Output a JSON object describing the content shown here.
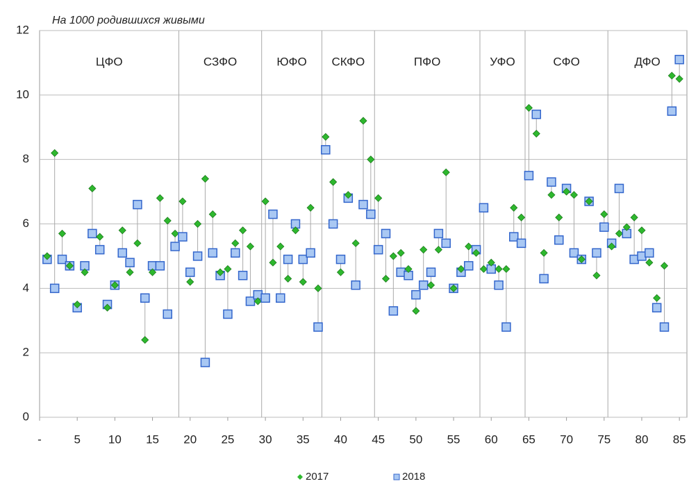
{
  "chart_data": {
    "type": "scatter",
    "subtitle": "На 1000 родившихся живыми",
    "x": [
      1,
      2,
      3,
      4,
      5,
      6,
      7,
      8,
      9,
      10,
      11,
      12,
      13,
      14,
      15,
      16,
      17,
      18,
      19,
      20,
      21,
      22,
      23,
      24,
      25,
      26,
      27,
      28,
      29,
      30,
      31,
      32,
      33,
      34,
      35,
      36,
      37,
      38,
      39,
      40,
      41,
      42,
      43,
      44,
      45,
      46,
      47,
      48,
      49,
      50,
      51,
      52,
      53,
      54,
      55,
      56,
      57,
      58,
      59,
      60,
      61,
      62,
      63,
      64,
      65,
      66,
      67,
      68,
      69,
      70,
      71,
      72,
      73,
      74,
      75,
      76,
      77,
      78,
      79,
      80,
      81,
      82,
      83,
      84,
      85
    ],
    "series": [
      {
        "name": "2017",
        "color": "#2eb82e",
        "values": [
          5.0,
          8.2,
          5.7,
          4.7,
          3.5,
          4.5,
          7.1,
          5.6,
          3.4,
          4.1,
          5.8,
          4.5,
          5.4,
          2.4,
          4.5,
          6.8,
          6.1,
          5.7,
          6.7,
          4.2,
          6.0,
          7.4,
          6.3,
          4.5,
          4.6,
          5.4,
          5.8,
          5.3,
          3.6,
          6.7,
          4.8,
          5.3,
          4.3,
          5.8,
          4.2,
          6.5,
          4.0,
          8.7,
          7.3,
          4.5,
          6.9,
          5.4,
          9.2,
          8.0,
          6.8,
          4.3,
          5.0,
          5.1,
          4.6,
          3.3,
          5.2,
          4.1,
          5.2,
          7.6,
          4.0,
          4.6,
          5.3,
          5.1,
          4.6,
          4.8,
          4.6,
          4.6,
          6.5,
          6.2,
          9.6,
          8.8,
          5.1,
          6.9,
          6.2,
          7.0,
          6.9,
          4.9,
          6.7,
          4.4,
          6.3,
          5.3,
          5.7,
          5.9,
          6.2,
          5.8,
          4.8,
          3.7,
          4.7,
          10.6,
          10.5
        ]
      },
      {
        "name": "2018",
        "color": "#3366cc",
        "values": [
          4.9,
          4.0,
          4.9,
          4.7,
          3.4,
          4.7,
          5.7,
          5.2,
          3.5,
          4.1,
          5.1,
          4.8,
          6.6,
          3.7,
          4.7,
          4.7,
          3.2,
          5.3,
          5.6,
          4.5,
          5.0,
          1.7,
          5.1,
          4.4,
          3.2,
          5.1,
          4.4,
          3.6,
          3.8,
          3.7,
          6.3,
          3.7,
          4.9,
          6.0,
          4.9,
          5.1,
          2.8,
          8.3,
          6.0,
          4.9,
          6.8,
          4.1,
          6.6,
          6.3,
          5.2,
          5.7,
          3.3,
          4.5,
          4.4,
          3.8,
          4.1,
          4.5,
          5.7,
          5.4,
          4.0,
          4.5,
          4.7,
          5.2,
          6.5,
          4.6,
          4.1,
          2.8,
          5.6,
          5.4,
          7.5,
          9.4,
          4.3,
          7.3,
          5.5,
          7.1,
          5.1,
          4.9,
          6.7,
          5.1,
          5.9,
          5.4,
          7.1,
          5.7,
          4.9,
          5.0,
          5.1,
          3.4,
          2.8,
          9.5,
          11.1
        ]
      }
    ],
    "districts": [
      "ЦФО",
      "СЗФО",
      "ЮФО",
      "СКФО",
      "ПФО",
      "УФО",
      "СФО",
      "ДФО"
    ],
    "district_boundaries": [
      18.5,
      29.5,
      37.5,
      44.5,
      58.5,
      64.5,
      75.5
    ],
    "xlim": [
      0,
      86
    ],
    "ylim": [
      0,
      12
    ],
    "xticks": [
      {
        "value": 0,
        "label": "-"
      },
      5,
      10,
      15,
      20,
      25,
      30,
      35,
      40,
      45,
      50,
      55,
      60,
      65,
      70,
      75,
      80,
      85
    ],
    "yticks": [
      0,
      2,
      4,
      6,
      8,
      10,
      12
    ],
    "grid": true,
    "legend": "bottom"
  }
}
